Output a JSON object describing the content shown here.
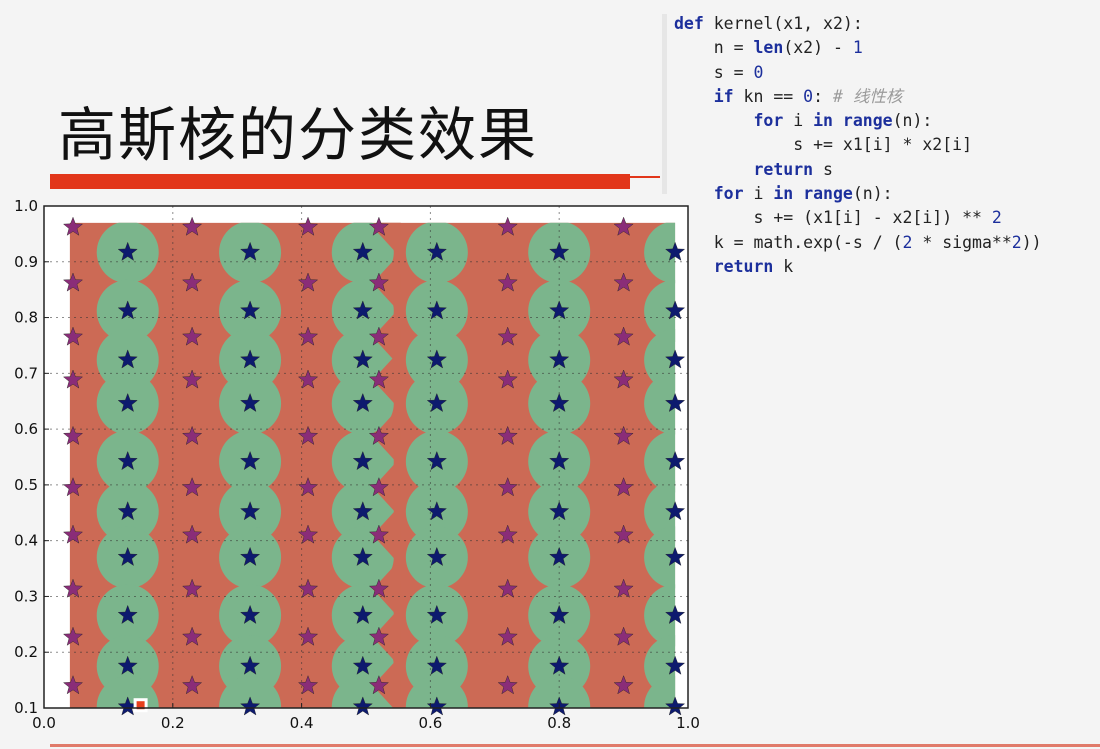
{
  "slide": {
    "title": "高斯核的分类效果"
  },
  "code": {
    "lines": [
      {
        "indent": "",
        "tokens": [
          [
            "kw",
            "def"
          ],
          [
            "t",
            " kernel(x1, x2):"
          ]
        ]
      },
      {
        "indent": "    ",
        "tokens": [
          [
            "t",
            "n = "
          ],
          [
            "kw",
            "len"
          ],
          [
            "t",
            "(x2) - "
          ],
          [
            "num",
            "1"
          ]
        ]
      },
      {
        "indent": "    ",
        "tokens": [
          [
            "t",
            "s = "
          ],
          [
            "num",
            "0"
          ]
        ]
      },
      {
        "indent": "    ",
        "tokens": [
          [
            "kw",
            "if"
          ],
          [
            "t",
            " kn == "
          ],
          [
            "num",
            "0"
          ],
          [
            "t",
            ": "
          ],
          [
            "cm",
            "# 线性核"
          ]
        ]
      },
      {
        "indent": "        ",
        "tokens": [
          [
            "kw",
            "for"
          ],
          [
            "t",
            " i "
          ],
          [
            "kw",
            "in"
          ],
          [
            "t",
            " "
          ],
          [
            "kw",
            "range"
          ],
          [
            "t",
            "(n):"
          ]
        ]
      },
      {
        "indent": "            ",
        "tokens": [
          [
            "t",
            "s += x1[i] * x2[i]"
          ]
        ]
      },
      {
        "indent": "        ",
        "tokens": [
          [
            "kw",
            "return"
          ],
          [
            "t",
            " s"
          ]
        ]
      },
      {
        "indent": "    ",
        "tokens": [
          [
            "kw",
            "for"
          ],
          [
            "t",
            " i "
          ],
          [
            "kw",
            "in"
          ],
          [
            "t",
            " "
          ],
          [
            "kw",
            "range"
          ],
          [
            "t",
            "(n):"
          ]
        ]
      },
      {
        "indent": "        ",
        "tokens": [
          [
            "t",
            "s += (x1[i] - x2[i]) ** "
          ],
          [
            "num",
            "2"
          ]
        ]
      },
      {
        "indent": "    ",
        "tokens": [
          [
            "t",
            "k = math.exp(-s / ("
          ],
          [
            "num",
            "2"
          ],
          [
            "t",
            " * sigma**"
          ],
          [
            "num",
            "2"
          ],
          [
            "t",
            "))"
          ]
        ]
      },
      {
        "indent": "    ",
        "tokens": [
          [
            "kw",
            "return"
          ],
          [
            "t",
            " k"
          ]
        ]
      }
    ]
  },
  "colors": {
    "background_region": "#cc6a55",
    "circle_region": "#7bb58c",
    "class_a_star": "#0d1a6e",
    "class_b_star": "#8a2d78",
    "title_bar": "#e2361a"
  },
  "chart_data": {
    "type": "scatter",
    "xlim": [
      0.0,
      1.0
    ],
    "ylim": [
      0.1,
      1.0
    ],
    "xticks": [
      "0.0",
      "0.2",
      "0.4",
      "0.6",
      "0.8",
      "1.0"
    ],
    "yticks": [
      "0.1",
      "0.2",
      "0.3",
      "0.4",
      "0.5",
      "0.6",
      "0.7",
      "0.8",
      "0.9",
      "1.0"
    ],
    "grid": true,
    "region_extent": {
      "x": [
        0.04,
        0.98
      ],
      "y": [
        0.1,
        0.97
      ]
    },
    "series": [
      {
        "marker": "star",
        "color": "#0d1a6e",
        "points": [
          [
            0.13,
            0.917
          ],
          [
            0.13,
            0.812
          ],
          [
            0.13,
            0.724
          ],
          [
            0.13,
            0.646
          ],
          [
            0.13,
            0.542
          ],
          [
            0.13,
            0.452
          ],
          [
            0.13,
            0.37
          ],
          [
            0.13,
            0.266
          ],
          [
            0.13,
            0.175
          ],
          [
            0.13,
            0.102
          ],
          [
            0.32,
            0.917
          ],
          [
            0.32,
            0.812
          ],
          [
            0.32,
            0.724
          ],
          [
            0.32,
            0.646
          ],
          [
            0.32,
            0.542
          ],
          [
            0.32,
            0.452
          ],
          [
            0.32,
            0.37
          ],
          [
            0.32,
            0.266
          ],
          [
            0.32,
            0.175
          ],
          [
            0.32,
            0.102
          ],
          [
            0.495,
            0.917
          ],
          [
            0.495,
            0.812
          ],
          [
            0.495,
            0.724
          ],
          [
            0.495,
            0.646
          ],
          [
            0.495,
            0.542
          ],
          [
            0.495,
            0.452
          ],
          [
            0.495,
            0.37
          ],
          [
            0.495,
            0.266
          ],
          [
            0.495,
            0.175
          ],
          [
            0.495,
            0.102
          ],
          [
            0.61,
            0.917
          ],
          [
            0.61,
            0.812
          ],
          [
            0.61,
            0.724
          ],
          [
            0.61,
            0.646
          ],
          [
            0.61,
            0.542
          ],
          [
            0.61,
            0.452
          ],
          [
            0.61,
            0.37
          ],
          [
            0.61,
            0.266
          ],
          [
            0.61,
            0.175
          ],
          [
            0.61,
            0.102
          ],
          [
            0.8,
            0.917
          ],
          [
            0.8,
            0.812
          ],
          [
            0.8,
            0.724
          ],
          [
            0.8,
            0.646
          ],
          [
            0.8,
            0.542
          ],
          [
            0.8,
            0.452
          ],
          [
            0.8,
            0.37
          ],
          [
            0.8,
            0.266
          ],
          [
            0.8,
            0.175
          ],
          [
            0.8,
            0.102
          ],
          [
            0.98,
            0.917
          ],
          [
            0.98,
            0.812
          ],
          [
            0.98,
            0.724
          ],
          [
            0.98,
            0.646
          ],
          [
            0.98,
            0.542
          ],
          [
            0.98,
            0.452
          ],
          [
            0.98,
            0.37
          ],
          [
            0.98,
            0.266
          ],
          [
            0.98,
            0.175
          ],
          [
            0.98,
            0.102
          ]
        ]
      },
      {
        "marker": "star",
        "color": "#8a2d78",
        "points": [
          [
            0.045,
            0.962
          ],
          [
            0.045,
            0.862
          ],
          [
            0.045,
            0.765
          ],
          [
            0.045,
            0.688
          ],
          [
            0.045,
            0.587
          ],
          [
            0.045,
            0.495
          ],
          [
            0.045,
            0.41
          ],
          [
            0.045,
            0.313
          ],
          [
            0.045,
            0.227
          ],
          [
            0.045,
            0.14
          ],
          [
            0.23,
            0.962
          ],
          [
            0.23,
            0.862
          ],
          [
            0.23,
            0.765
          ],
          [
            0.23,
            0.688
          ],
          [
            0.23,
            0.587
          ],
          [
            0.23,
            0.495
          ],
          [
            0.23,
            0.41
          ],
          [
            0.23,
            0.313
          ],
          [
            0.23,
            0.227
          ],
          [
            0.23,
            0.14
          ],
          [
            0.41,
            0.962
          ],
          [
            0.41,
            0.862
          ],
          [
            0.41,
            0.765
          ],
          [
            0.41,
            0.688
          ],
          [
            0.41,
            0.587
          ],
          [
            0.41,
            0.495
          ],
          [
            0.41,
            0.41
          ],
          [
            0.41,
            0.313
          ],
          [
            0.41,
            0.227
          ],
          [
            0.41,
            0.14
          ],
          [
            0.52,
            0.962
          ],
          [
            0.52,
            0.862
          ],
          [
            0.52,
            0.765
          ],
          [
            0.52,
            0.688
          ],
          [
            0.52,
            0.587
          ],
          [
            0.52,
            0.495
          ],
          [
            0.52,
            0.41
          ],
          [
            0.52,
            0.313
          ],
          [
            0.52,
            0.227
          ],
          [
            0.52,
            0.14
          ],
          [
            0.72,
            0.962
          ],
          [
            0.72,
            0.862
          ],
          [
            0.72,
            0.765
          ],
          [
            0.72,
            0.688
          ],
          [
            0.72,
            0.587
          ],
          [
            0.72,
            0.495
          ],
          [
            0.72,
            0.41
          ],
          [
            0.72,
            0.313
          ],
          [
            0.72,
            0.227
          ],
          [
            0.72,
            0.14
          ],
          [
            0.9,
            0.962
          ],
          [
            0.9,
            0.862
          ],
          [
            0.9,
            0.765
          ],
          [
            0.9,
            0.688
          ],
          [
            0.9,
            0.587
          ],
          [
            0.9,
            0.495
          ],
          [
            0.9,
            0.41
          ],
          [
            0.9,
            0.313
          ],
          [
            0.9,
            0.227
          ],
          [
            0.9,
            0.14
          ]
        ]
      }
    ],
    "highlight_point": {
      "x": 0.15,
      "y": 0.105,
      "color": "#e8401c"
    }
  }
}
